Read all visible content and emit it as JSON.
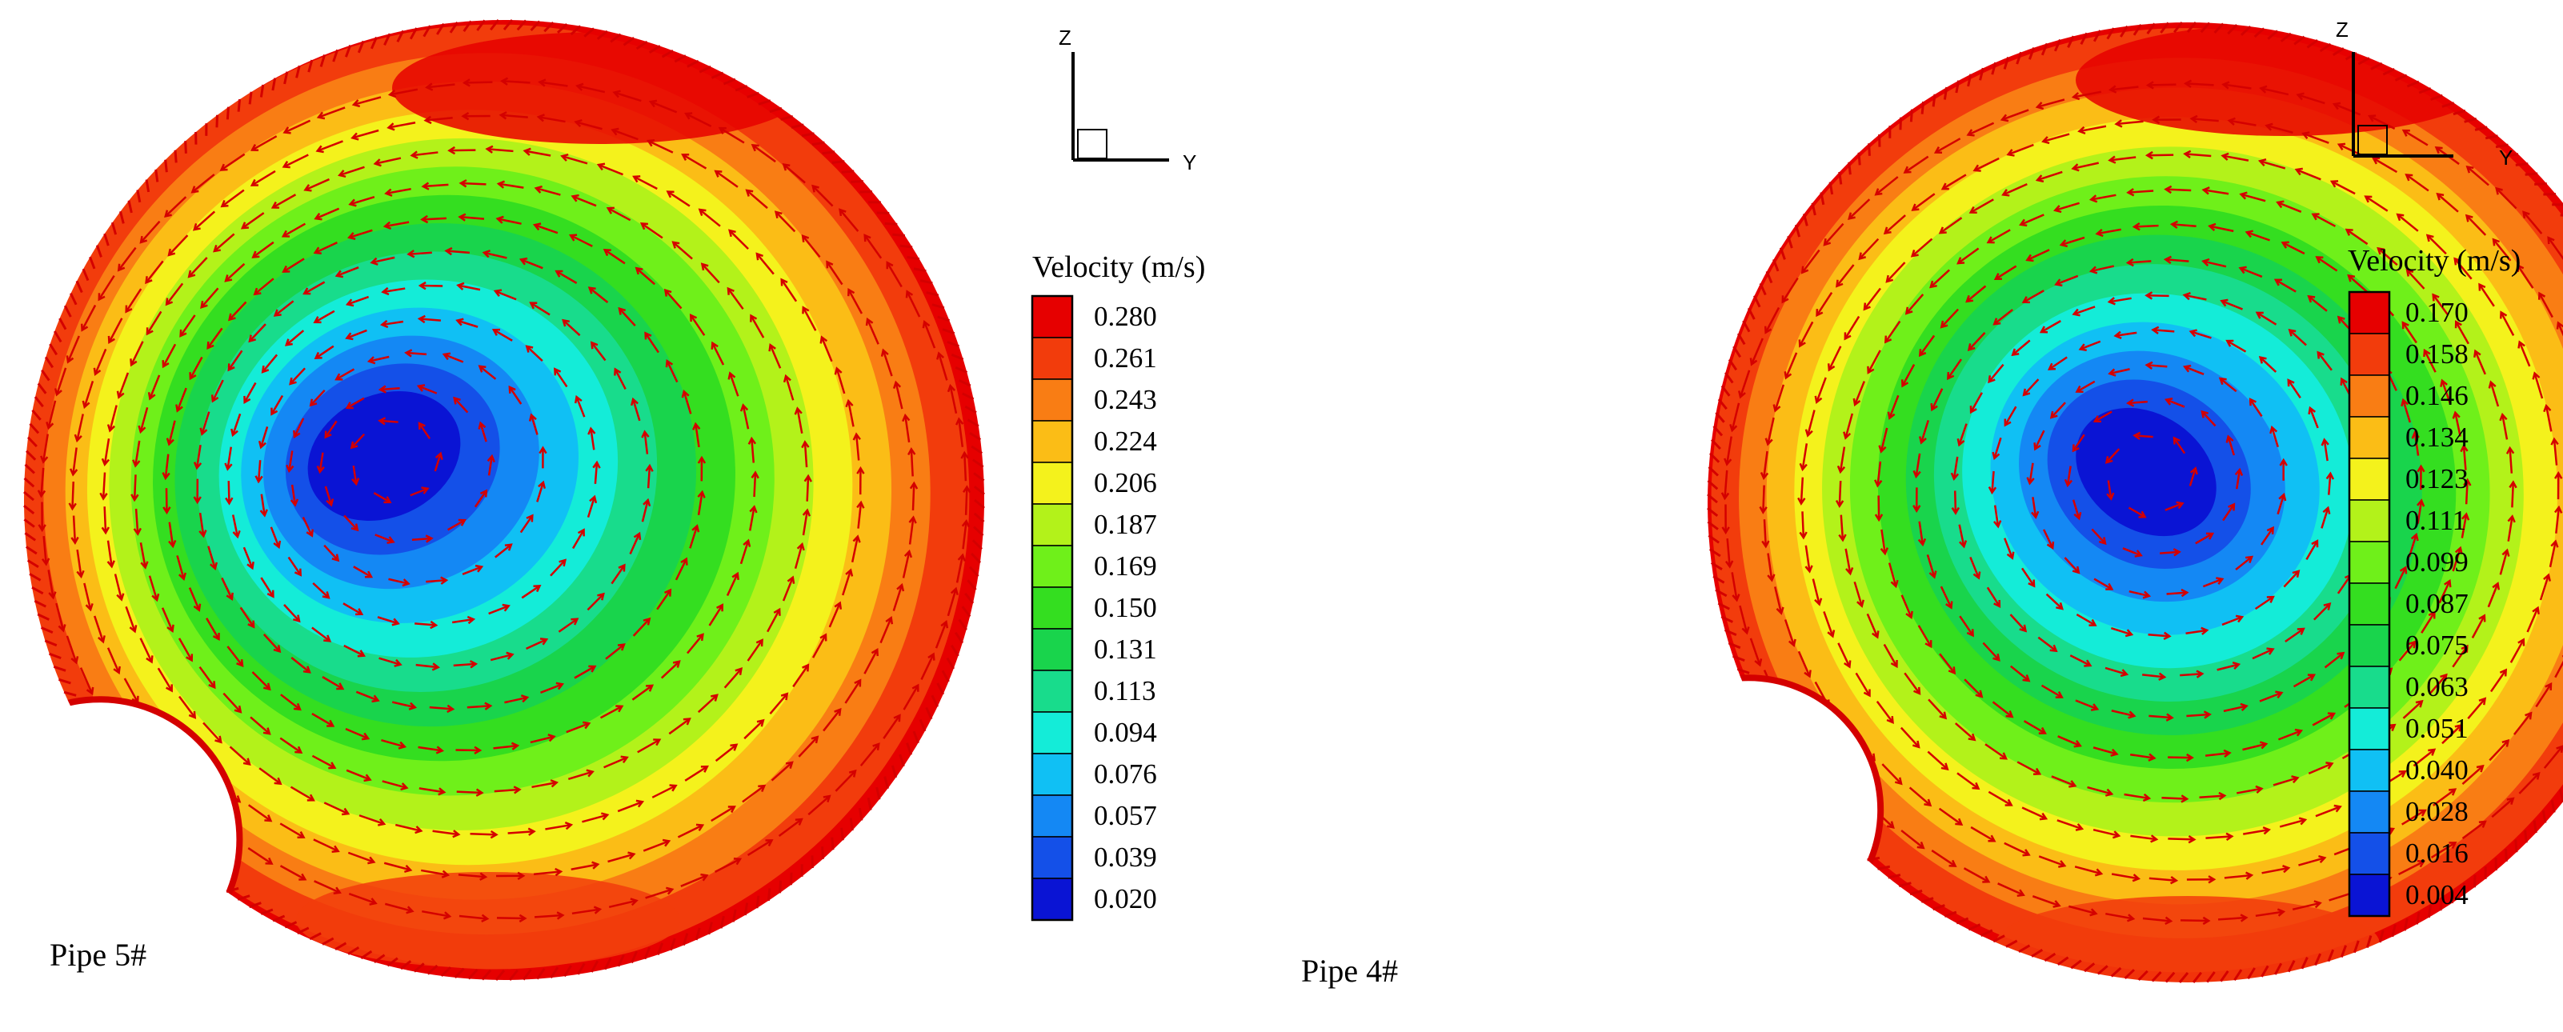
{
  "panels": [
    {
      "label": "Pipe 5#",
      "legend_title": "Velocity (m/s)",
      "legend_values": [
        "0.280",
        "0.261",
        "0.243",
        "0.224",
        "0.206",
        "0.187",
        "0.169",
        "0.150",
        "0.131",
        "0.113",
        "0.094",
        "0.076",
        "0.057",
        "0.039",
        "0.020"
      ],
      "axes": {
        "z": "Z",
        "y": "Y"
      }
    },
    {
      "label": "Pipe 4#",
      "legend_title": "Velocity (m/s)",
      "legend_values": [
        "0.170",
        "0.158",
        "0.146",
        "0.134",
        "0.123",
        "0.111",
        "0.099",
        "0.087",
        "0.075",
        "0.063",
        "0.051",
        "0.040",
        "0.028",
        "0.016",
        "0.004"
      ],
      "axes": {
        "z": "Z",
        "y": "Y"
      }
    }
  ],
  "colors": {
    "scale": [
      "#e60000",
      "#f23c0c",
      "#f97d14",
      "#fbbd16",
      "#f4f21c",
      "#b3f21a",
      "#6ff01a",
      "#34de20",
      "#19d44c",
      "#18dc8c",
      "#14ecd8",
      "#10c0f4",
      "#1488f4",
      "#1450e8",
      "#0a14d4"
    ],
    "arrow": "#d40000",
    "wall": "#d40000"
  }
}
